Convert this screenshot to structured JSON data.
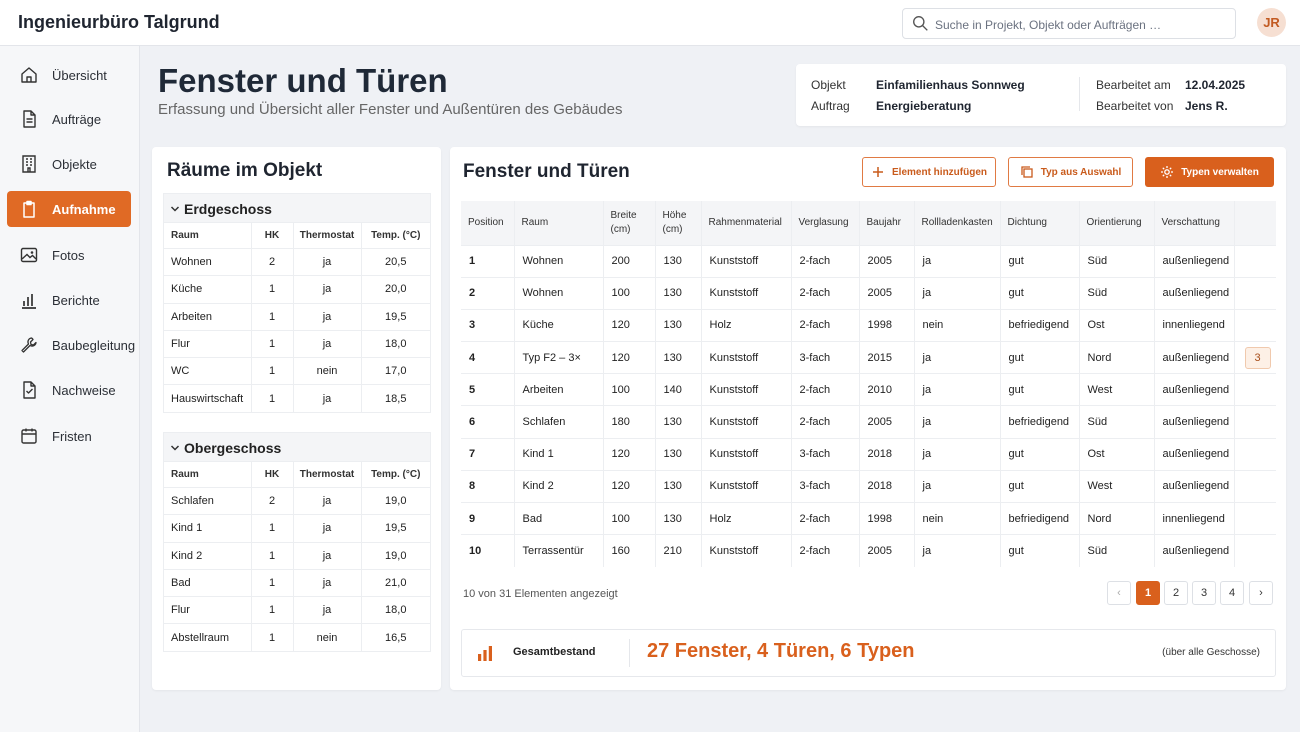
{
  "app": {
    "title": "Ingenieurbüro Talgrund",
    "user_initials": "JR"
  },
  "search": {
    "placeholder": "Suche in Projekt, Objekt oder Aufträgen …"
  },
  "sidebar": {
    "items": [
      {
        "label": "Übersicht",
        "icon": "home-icon"
      },
      {
        "label": "Aufträge",
        "icon": "document-icon"
      },
      {
        "label": "Objekte",
        "icon": "building-icon"
      },
      {
        "label": "Aufnahme",
        "icon": "clipboard-icon",
        "active": true
      },
      {
        "label": "Fotos",
        "icon": "image-icon"
      },
      {
        "label": "Berichte",
        "icon": "chart-icon"
      },
      {
        "label": "Baubegleitung",
        "icon": "wrench-icon"
      },
      {
        "label": "Nachweise",
        "icon": "certificate-icon"
      },
      {
        "label": "Fristen",
        "icon": "calendar-icon"
      }
    ]
  },
  "page": {
    "title": "Fenster und Türen",
    "subtitle": "Erfassung und Übersicht aller Fenster und Außentüren des Gebäudes"
  },
  "info": {
    "objekt_label": "Objekt",
    "objekt_value": "Einfamilienhaus Sonnweg",
    "auftrag_label": "Auftrag",
    "auftrag_value": "Energieberatung",
    "bearbeitet_am_label": "Bearbeitet am",
    "bearbeitet_am_value": "12.04.2025",
    "bearbeitet_von_label": "Bearbeitet von",
    "bearbeitet_von_value": "Jens R."
  },
  "rooms": {
    "title": "Räume im Objekt",
    "columns": [
      "Raum",
      "HK",
      "Thermostat",
      "Temp. (°C)"
    ],
    "floors": [
      {
        "name": "Erdgeschoss",
        "rows": [
          [
            "Wohnen",
            "2",
            "ja",
            "20,5"
          ],
          [
            "Küche",
            "1",
            "ja",
            "20,0"
          ],
          [
            "Arbeiten",
            "1",
            "ja",
            "19,5"
          ],
          [
            "Flur",
            "1",
            "ja",
            "18,0"
          ],
          [
            "WC",
            "1",
            "nein",
            "17,0"
          ],
          [
            "Hauswirtschaft",
            "1",
            "ja",
            "18,5"
          ]
        ]
      },
      {
        "name": "Obergeschoss",
        "rows": [
          [
            "Schlafen",
            "2",
            "ja",
            "19,0"
          ],
          [
            "Kind 1",
            "1",
            "ja",
            "19,5"
          ],
          [
            "Kind 2",
            "1",
            "ja",
            "19,0"
          ],
          [
            "Bad",
            "1",
            "ja",
            "21,0"
          ],
          [
            "Flur",
            "1",
            "ja",
            "18,0"
          ],
          [
            "Abstellraum",
            "1",
            "nein",
            "16,5"
          ]
        ]
      }
    ]
  },
  "windows": {
    "title": "Fenster und Türen",
    "buttons": {
      "add": "Element hinzufügen",
      "copy_type": "Typ aus Auswahl",
      "manage_types": "Typen verwalten"
    },
    "columns": [
      "Position",
      "Raum",
      "Breite\n(cm)",
      "Höhe\n(cm)",
      "Rahmenmaterial",
      "Verglasung",
      "Baujahr",
      "Rollladenkasten",
      "Dichtung",
      "Orientierung",
      "Verschattung",
      ""
    ],
    "rows": [
      [
        "1",
        "Wohnen",
        "200",
        "130",
        "Kunststoff",
        "2-fach",
        "2005",
        "ja",
        "gut",
        "Süd",
        "außenliegend",
        ""
      ],
      [
        "2",
        "Wohnen",
        "100",
        "130",
        "Kunststoff",
        "2-fach",
        "2005",
        "ja",
        "gut",
        "Süd",
        "außenliegend",
        ""
      ],
      [
        "3",
        "Küche",
        "120",
        "130",
        "Holz",
        "2-fach",
        "1998",
        "nein",
        "befriedigend",
        "Ost",
        "innenliegend",
        ""
      ],
      [
        "4",
        "Typ F2 – 3×",
        "120",
        "130",
        "Kunststoff",
        "3-fach",
        "2015",
        "ja",
        "gut",
        "Nord",
        "außenliegend",
        "3"
      ],
      [
        "5",
        "Arbeiten",
        "100",
        "140",
        "Kunststoff",
        "2-fach",
        "2010",
        "ja",
        "gut",
        "West",
        "außenliegend",
        ""
      ],
      [
        "6",
        "Schlafen",
        "180",
        "130",
        "Kunststoff",
        "2-fach",
        "2005",
        "ja",
        "befriedigend",
        "Süd",
        "außenliegend",
        ""
      ],
      [
        "7",
        "Kind 1",
        "120",
        "130",
        "Kunststoff",
        "3-fach",
        "2018",
        "ja",
        "gut",
        "Ost",
        "außenliegend",
        ""
      ],
      [
        "8",
        "Kind 2",
        "120",
        "130",
        "Kunststoff",
        "3-fach",
        "2018",
        "ja",
        "gut",
        "West",
        "außenliegend",
        ""
      ],
      [
        "9",
        "Bad",
        "100",
        "130",
        "Holz",
        "2-fach",
        "1998",
        "nein",
        "befriedigend",
        "Nord",
        "innenliegend",
        ""
      ],
      [
        "10",
        "Terrassentür",
        "160",
        "210",
        "Kunststoff",
        "2-fach",
        "2005",
        "ja",
        "gut",
        "Süd",
        "außenliegend",
        ""
      ]
    ],
    "count_text": "10 von 31 Elementen angezeigt",
    "pagination": {
      "prev": "‹",
      "pages": [
        "1",
        "2",
        "3",
        "4"
      ],
      "current": "1",
      "next": "›"
    },
    "summary": {
      "label": "Gesamtbestand",
      "value": "27 Fenster, 4 Türen, 6 Typen",
      "note": "(über alle Geschosse)"
    }
  },
  "colors": {
    "accent": "#d9601d",
    "background": "#eff1f5"
  }
}
